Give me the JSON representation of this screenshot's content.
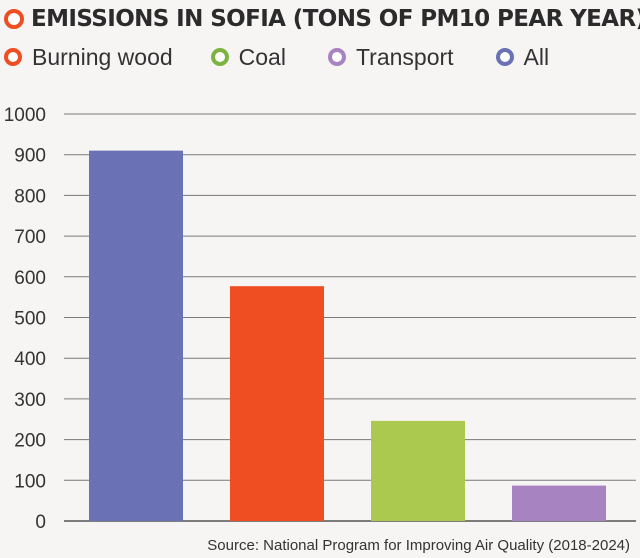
{
  "chart_data": {
    "type": "bar",
    "title": "EMISSIONS IN SOFIA (TONS OF PM10 PEAR YEAR)",
    "xlabel": "",
    "ylabel": "",
    "ylim": [
      0,
      1000
    ],
    "yticks": [
      0,
      100,
      200,
      300,
      400,
      500,
      600,
      700,
      800,
      900,
      1000
    ],
    "grid": true,
    "legend_position": "top",
    "categories": [
      "All",
      "Burning wood",
      "Coal",
      "Transport"
    ],
    "values": [
      910,
      577,
      246,
      87
    ],
    "colors": [
      "#6a72b5",
      "#ee4e22",
      "#abc94f",
      "#a883c2"
    ],
    "legend": [
      {
        "label": "Burning wood",
        "color": "#ee4e22"
      },
      {
        "label": "Coal",
        "color": "#7cb342"
      },
      {
        "label": "Transport",
        "color": "#a883c2"
      },
      {
        "label": "All",
        "color": "#6a72b5"
      }
    ],
    "source": "Source: National Program for Improving Air Quality (2018-2024)"
  }
}
